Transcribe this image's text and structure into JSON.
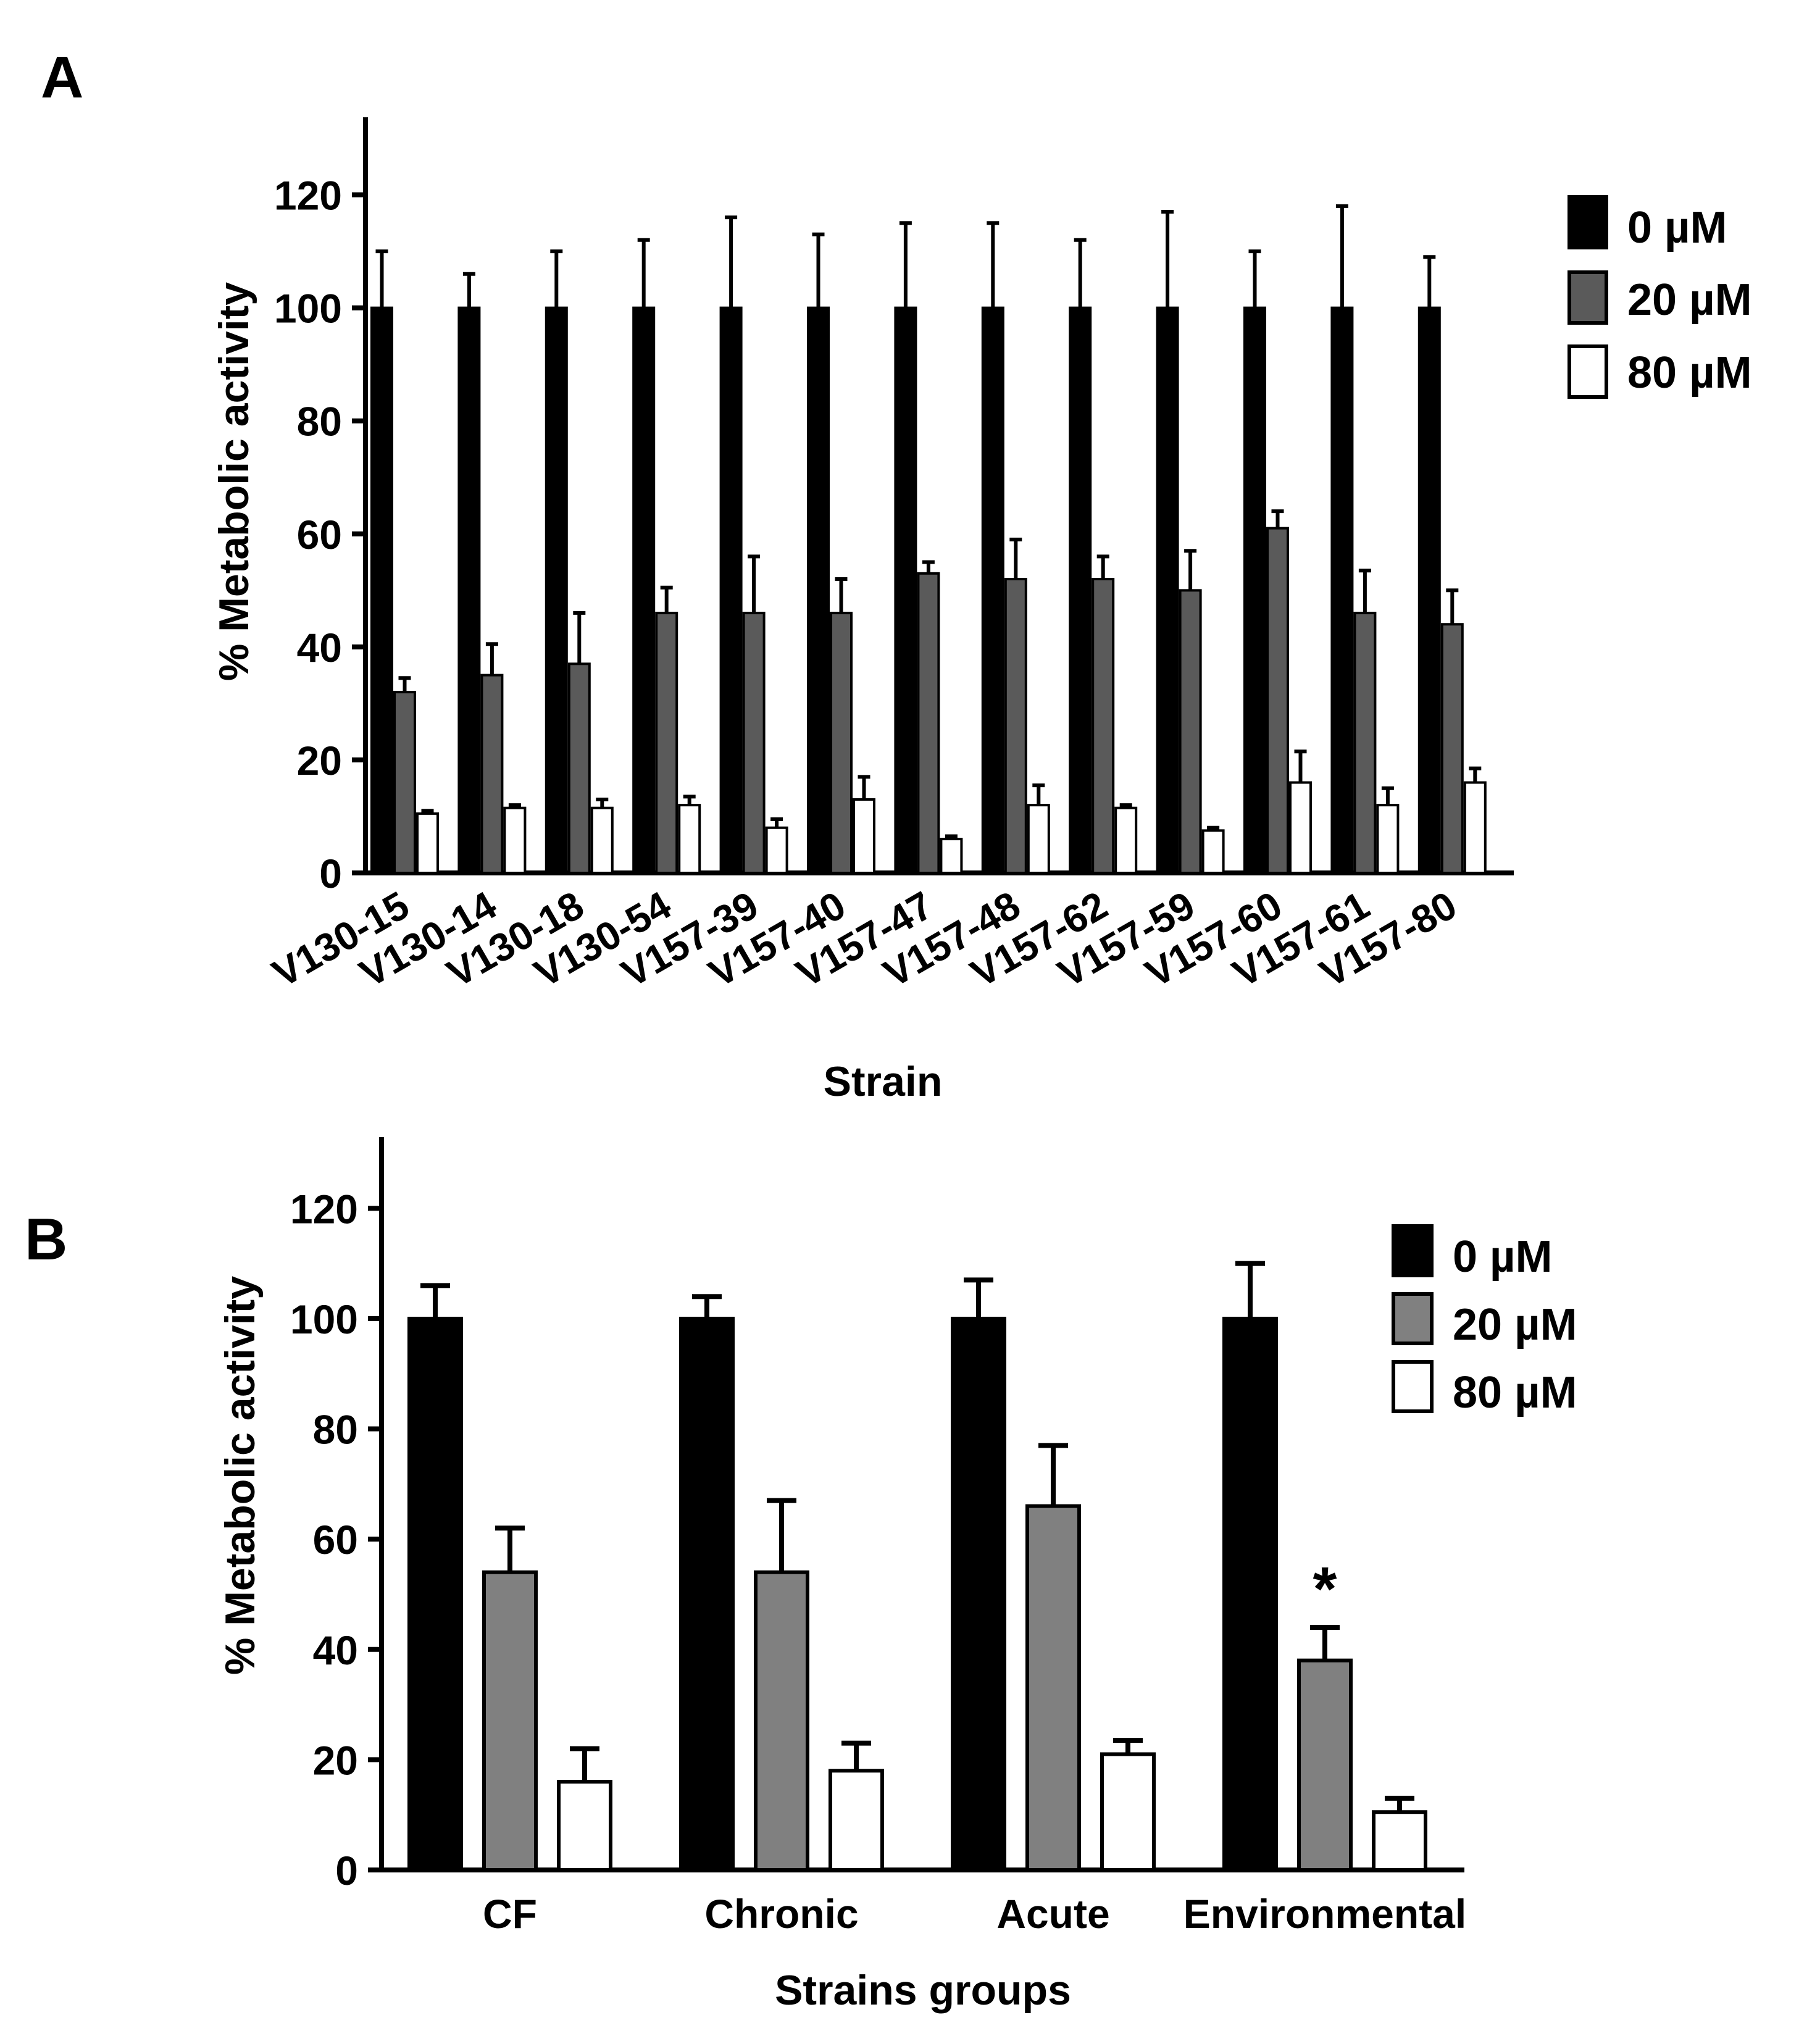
{
  "panels": {
    "a": {
      "label": "A"
    },
    "b": {
      "label": "B"
    }
  },
  "colors": {
    "0 µM": "#000000",
    "20 µM A": "#5a5a5a",
    "20 µM B": "#808080",
    "80 µM": "#ffffff",
    "axis": "#000000"
  },
  "chart_data": [
    {
      "panel": "A",
      "type": "bar",
      "title": "",
      "xlabel": "Strain",
      "ylabel": "% Metabolic activity",
      "ylim": [
        0,
        130
      ],
      "yticks": [
        0,
        20,
        40,
        60,
        80,
        100,
        120
      ],
      "categories": [
        "V130-15",
        "V130-14",
        "V130-18",
        "V130-54",
        "V157-39",
        "V157-40",
        "V157-47",
        "V157-48",
        "V157-62",
        "V157-59",
        "V157-60",
        "V157-61",
        "V157-80"
      ],
      "legend": [
        "0 µM",
        "20 µM",
        "80 µM"
      ],
      "legend_position": "right",
      "series": [
        {
          "name": "0 µM",
          "values": [
            100,
            100,
            100,
            100,
            100,
            100,
            100,
            100,
            100,
            100,
            100,
            100,
            100
          ],
          "errors": [
            10,
            6,
            10,
            12,
            16,
            13,
            15,
            15,
            12,
            17,
            10,
            18,
            9
          ]
        },
        {
          "name": "20 µM",
          "values": [
            32,
            35,
            37,
            46,
            46,
            46,
            53,
            52,
            52,
            50,
            61,
            46,
            44
          ],
          "errors": [
            2.5,
            5.5,
            9,
            4.5,
            10,
            6,
            2,
            7,
            4,
            7,
            3,
            7.5,
            6
          ]
        },
        {
          "name": "80 µM",
          "values": [
            10.5,
            11.5,
            11.5,
            12,
            8,
            13,
            6,
            12,
            11.5,
            7.5,
            16,
            12,
            16
          ],
          "errors": [
            0.5,
            0.5,
            1.5,
            1.5,
            1.5,
            4,
            0.5,
            3.5,
            0.5,
            0.5,
            5.5,
            3,
            2.5
          ]
        }
      ]
    },
    {
      "panel": "B",
      "type": "bar",
      "title": "",
      "xlabel": "Strains groups",
      "ylabel": "% Metabolic activity",
      "ylim": [
        0,
        130
      ],
      "yticks": [
        0,
        20,
        40,
        60,
        80,
        100,
        120
      ],
      "categories": [
        "CF",
        "Chronic",
        "Acute",
        "Environmental"
      ],
      "legend": [
        "0 µM",
        "20 µM",
        "80 µM"
      ],
      "legend_position": "right",
      "annotations": [
        {
          "category": "Environmental",
          "series": "20 µM",
          "text": "*"
        }
      ],
      "series": [
        {
          "name": "0 µM",
          "values": [
            100,
            100,
            100,
            100
          ],
          "errors": [
            6,
            4,
            7,
            10
          ]
        },
        {
          "name": "20 µM",
          "values": [
            54,
            54,
            66,
            38
          ],
          "errors": [
            8,
            13,
            11,
            6
          ]
        },
        {
          "name": "80 µM",
          "values": [
            16,
            18,
            21,
            10.5
          ],
          "errors": [
            6,
            5,
            2.5,
            2.5
          ]
        }
      ]
    }
  ]
}
